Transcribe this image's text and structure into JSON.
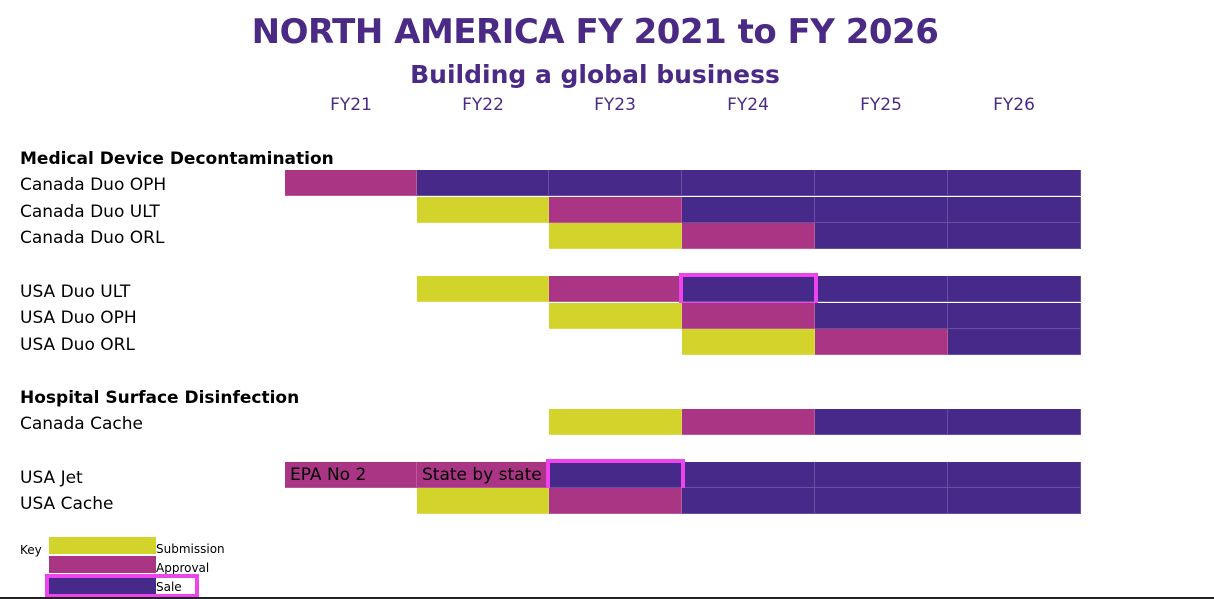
{
  "title": "NORTH AMERICA FY 2021 to FY 2026",
  "subtitle": "Building a global business",
  "years": [
    "FY21",
    "FY22",
    "FY23",
    "FY24",
    "FY25",
    "FY26"
  ],
  "colors": {
    "submission": "#d2d32b",
    "approval": "#ab3585",
    "sale": "#47298a",
    "highlight": "#ee44ee"
  },
  "sections": [
    {
      "name": "Medical Device Decontamination",
      "rows": [
        {
          "label": "Canada Duo OPH",
          "phases": [
            "approval",
            "sale",
            "sale",
            "sale",
            "sale",
            "sale"
          ]
        },
        {
          "label": "Canada Duo ULT",
          "phases": [
            "",
            "submission",
            "approval",
            "sale",
            "sale",
            "sale"
          ]
        },
        {
          "label": "Canada Duo ORL",
          "phases": [
            "",
            "",
            "submission",
            "approval",
            "sale",
            "sale"
          ]
        },
        {
          "label": "USA Duo ULT",
          "phases": [
            "",
            "submission",
            "approval",
            "sale",
            "sale",
            "sale"
          ],
          "highlight": 3
        },
        {
          "label": "USA Duo OPH",
          "phases": [
            "",
            "",
            "submission",
            "approval",
            "sale",
            "sale"
          ]
        },
        {
          "label": "USA Duo ORL",
          "phases": [
            "",
            "",
            "",
            "submission",
            "approval",
            "sale"
          ]
        }
      ]
    },
    {
      "name": "Hospital Surface Disinfection",
      "rows": [
        {
          "label": "Canada Cache",
          "phases": [
            "",
            "",
            "submission",
            "approval",
            "sale",
            "sale"
          ]
        },
        {
          "label": "USA Jet",
          "phases": [
            "approval",
            "approval",
            "sale",
            "sale",
            "sale",
            "sale"
          ],
          "cell_text": [
            "EPA No 2",
            "State by state",
            "",
            "",
            "",
            ""
          ],
          "highlight": 2
        },
        {
          "label": "USA Cache",
          "phases": [
            "",
            "submission",
            "approval",
            "sale",
            "sale",
            "sale"
          ]
        }
      ]
    }
  ],
  "key": {
    "label": "Key",
    "submission": "Submission",
    "approval": "Approval",
    "sale": "Sale"
  }
}
